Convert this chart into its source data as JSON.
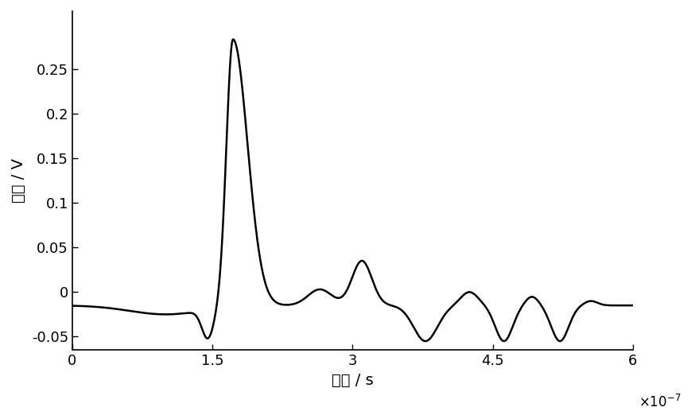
{
  "xlabel": "时间 / s",
  "ylabel": "幅度 / V",
  "xlim": [
    0,
    6e-07
  ],
  "ylim": [
    -0.065,
    0.315
  ],
  "xticks": [
    0,
    1.5e-07,
    3e-07,
    4.5e-07,
    6e-07
  ],
  "xtick_labels": [
    "0",
    "1.5",
    "3",
    "4.5",
    "6"
  ],
  "yticks": [
    -0.05,
    0,
    0.05,
    0.1,
    0.15,
    0.2,
    0.25
  ],
  "line_color": "#000000",
  "line_width": 1.8,
  "background_color": "#ffffff",
  "xlabel_fontsize": 14,
  "ylabel_fontsize": 14,
  "tick_fontsize": 13
}
